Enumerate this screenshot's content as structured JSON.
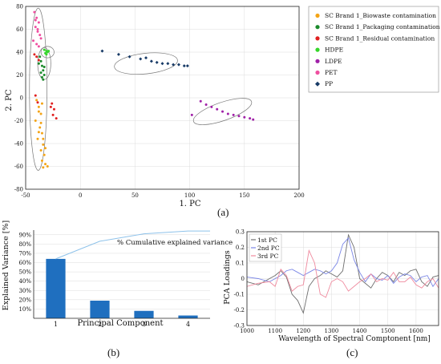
{
  "chart_data": [
    {
      "type": "scatter",
      "id": "a",
      "xlabel": "1. PC",
      "ylabel": "2. PC",
      "xlim": [
        -50,
        200
      ],
      "ylim": [
        -80,
        80
      ],
      "xticks": [
        -50,
        0,
        50,
        100,
        150,
        200
      ],
      "yticks": [
        -80,
        -60,
        -40,
        -20,
        0,
        20,
        40,
        60,
        80
      ],
      "grid": true,
      "legend_position": "right",
      "series": [
        {
          "name": "SC Brand 1_Biowaste contamination",
          "color": "#f4a416",
          "marker": "dot",
          "points": [
            [
              -40,
              -2
            ],
            [
              -38,
              -8
            ],
            [
              -36,
              -14
            ],
            [
              -41,
              -20
            ],
            [
              -37,
              -26
            ],
            [
              -35,
              -31
            ],
            [
              -39,
              -36
            ],
            [
              -34,
              -41
            ],
            [
              -36,
              -46
            ],
            [
              -33,
              -50
            ],
            [
              -35,
              -55
            ],
            [
              -32,
              -58
            ],
            [
              -34,
              -61
            ],
            [
              -30,
              -60
            ],
            [
              -38,
              -30
            ],
            [
              -36,
              -22
            ],
            [
              -34,
              -36
            ],
            [
              -32,
              -44
            ],
            [
              -38,
              -12
            ],
            [
              -35,
              -5
            ]
          ]
        },
        {
          "name": "SC Brand 1_Packaging contamination",
          "color": "#1b8a2b",
          "marker": "dot",
          "points": [
            [
              -37,
              36
            ],
            [
              -36,
              32
            ],
            [
              -35,
              28
            ],
            [
              -34,
              24
            ],
            [
              -33,
              20
            ],
            [
              -35,
              18
            ],
            [
              -38,
              30
            ],
            [
              -33,
              27
            ],
            [
              -36,
              22
            ],
            [
              -34,
              16
            ]
          ]
        },
        {
          "name": "SC Brand 1_Residual contamination",
          "color": "#e02020",
          "marker": "dot",
          "points": [
            [
              -42,
              38
            ],
            [
              -40,
              36
            ],
            [
              -38,
              33
            ],
            [
              -26,
              -5
            ],
            [
              -24,
              -10
            ],
            [
              -22,
              -18
            ],
            [
              -25,
              -15
            ],
            [
              -41,
              2
            ],
            [
              -39,
              -4
            ],
            [
              -27,
              -8
            ]
          ]
        },
        {
          "name": "HDPE",
          "color": "#35d62a",
          "marker": "dot",
          "points": [
            [
              -33,
              42
            ],
            [
              -31,
              41
            ],
            [
              -30,
              40
            ],
            [
              -32,
              39
            ],
            [
              -29,
              41
            ],
            [
              -31,
              38
            ]
          ]
        },
        {
          "name": "LDPE",
          "color": "#a020a8",
          "marker": "dot",
          "points": [
            [
              102,
              -15
            ],
            [
              110,
              -3
            ],
            [
              115,
              -6
            ],
            [
              120,
              -8
            ],
            [
              125,
              -10
            ],
            [
              130,
              -12
            ],
            [
              135,
              -14
            ],
            [
              140,
              -15
            ],
            [
              145,
              -16
            ],
            [
              150,
              -17
            ],
            [
              155,
              -18
            ],
            [
              158,
              -19
            ]
          ]
        },
        {
          "name": "PET",
          "color": "#ef4fa0",
          "marker": "dot",
          "points": [
            [
              -42,
              75
            ],
            [
              -40,
              70
            ],
            [
              -38,
              66
            ],
            [
              -41,
              62
            ],
            [
              -39,
              58
            ],
            [
              -37,
              55
            ],
            [
              -43,
              50
            ],
            [
              -40,
              47
            ],
            [
              -38,
              45
            ],
            [
              -36,
              52
            ],
            [
              -41,
              68
            ],
            [
              -39,
              60
            ]
          ]
        },
        {
          "name": "PP",
          "color": "#173a66",
          "marker": "diamond",
          "points": [
            [
              20,
              41
            ],
            [
              35,
              38
            ],
            [
              45,
              36
            ],
            [
              55,
              34
            ],
            [
              60,
              35
            ],
            [
              65,
              32
            ],
            [
              70,
              31
            ],
            [
              75,
              30
            ],
            [
              80,
              30
            ],
            [
              85,
              29
            ],
            [
              90,
              29
            ],
            [
              95,
              28
            ],
            [
              98,
              28
            ]
          ]
        }
      ]
    },
    {
      "type": "bar",
      "id": "b",
      "xlabel": "Principal Component",
      "ylabel": "Explained Variance [%]",
      "categories": [
        "1",
        "2",
        "3",
        "4"
      ],
      "values": [
        64,
        19,
        8,
        3
      ],
      "cumulative": [
        64,
        83,
        91,
        94
      ],
      "cumulative_label": "% Cumulative explained variance",
      "ylim": [
        0,
        95
      ],
      "yticks": [
        "10%",
        "20%",
        "30%",
        "40%",
        "50%",
        "60%",
        "70%",
        "80%",
        "90%"
      ],
      "bar_color": "#1f6fbf",
      "line_color": "#8ec2ea"
    },
    {
      "type": "line",
      "id": "c",
      "xlabel": "Wavelength of Spectral Comptonent [nm]",
      "ylabel": "PCA Loadings",
      "xlim": [
        1000,
        1680
      ],
      "ylim": [
        -0.3,
        0.3
      ],
      "xticks": [
        1000,
        1100,
        1200,
        1300,
        1400,
        1500,
        1600
      ],
      "yticks": [
        -0.3,
        -0.2,
        -0.1,
        0,
        0.1,
        0.2,
        0.3
      ],
      "x": [
        1000,
        1040,
        1080,
        1100,
        1120,
        1140,
        1160,
        1180,
        1200,
        1220,
        1240,
        1260,
        1280,
        1300,
        1320,
        1340,
        1360,
        1380,
        1400,
        1420,
        1440,
        1460,
        1480,
        1500,
        1520,
        1540,
        1560,
        1580,
        1600,
        1620,
        1640,
        1660,
        1680
      ],
      "series": [
        {
          "name": "1st PC",
          "color": "#6e6e6e",
          "values": [
            -0.02,
            -0.04,
            0.0,
            0.02,
            0.05,
            0.01,
            -0.1,
            -0.14,
            -0.22,
            -0.05,
            0.0,
            0.02,
            0.05,
            0.03,
            0.01,
            0.05,
            0.28,
            0.2,
            0.0,
            -0.03,
            -0.06,
            0.0,
            0.04,
            0.02,
            -0.02,
            0.04,
            0.02,
            0.05,
            0.06,
            -0.02,
            -0.05,
            0.01,
            0.02
          ]
        },
        {
          "name": "2nd PC",
          "color": "#7a86e6",
          "values": [
            0.01,
            0.0,
            -0.02,
            0.0,
            0.02,
            0.05,
            0.06,
            0.04,
            0.02,
            0.04,
            0.06,
            0.05,
            0.03,
            0.05,
            0.1,
            0.22,
            0.26,
            0.12,
            0.04,
            -0.02,
            0.03,
            0.0,
            -0.01,
            0.02,
            -0.03,
            0.01,
            0.03,
            0.02,
            -0.02,
            0.01,
            0.02,
            -0.05,
            0.0
          ]
        },
        {
          "name": "3rd PC",
          "color": "#ef8a9e",
          "values": [
            -0.05,
            -0.03,
            -0.02,
            -0.05,
            0.06,
            0.02,
            -0.08,
            -0.05,
            -0.04,
            0.18,
            0.1,
            -0.1,
            -0.12,
            -0.02,
            0.0,
            -0.02,
            -0.08,
            -0.05,
            -0.02,
            0.0,
            0.03,
            -0.02,
            0.0,
            -0.01,
            0.04,
            -0.02,
            -0.02,
            0.01,
            -0.04,
            -0.06,
            -0.02,
            0.0,
            -0.06
          ]
        }
      ]
    }
  ],
  "captions": {
    "a": "(a)",
    "b": "(b)",
    "c": "(c)"
  }
}
